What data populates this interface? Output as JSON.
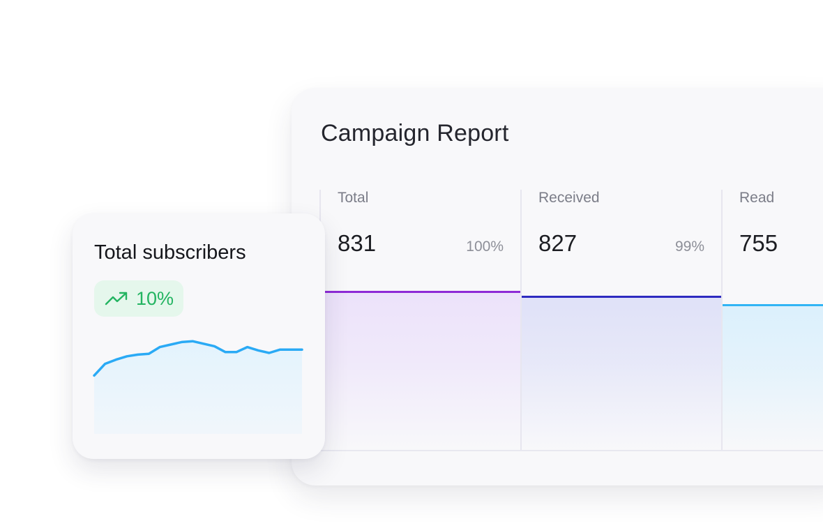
{
  "report": {
    "title": "Campaign Report",
    "columns": [
      {
        "label": "Total",
        "value": "831",
        "pct": "100%",
        "level": 0.94,
        "color": "#8e2bd6",
        "fill": "#ece2fa"
      },
      {
        "label": "Received",
        "value": "827",
        "pct": "99%",
        "level": 0.91,
        "color": "#2e2bc0",
        "fill": "#dfe1f8"
      },
      {
        "label": "Read",
        "value": "755",
        "pct": "",
        "level": 0.86,
        "color": "#31b4f4",
        "fill": "#dbf0fc"
      }
    ]
  },
  "subscribers": {
    "title": "Total subscribers",
    "change": "10%",
    "change_color": "#23b461",
    "trend_icon": "trending-up-icon"
  },
  "chart_data": {
    "type": "area",
    "x": [
      0,
      1,
      2,
      3,
      4,
      5,
      6,
      7,
      8,
      9,
      10,
      11,
      12,
      13,
      14,
      15,
      16,
      17,
      18,
      19
    ],
    "values": [
      0.06,
      0.34,
      0.44,
      0.52,
      0.56,
      0.58,
      0.74,
      0.8,
      0.86,
      0.88,
      0.82,
      0.76,
      0.62,
      0.62,
      0.74,
      0.66,
      0.6,
      0.68,
      0.68,
      0.68
    ],
    "color": "#2aaaf5",
    "fill": "#e3f3fd",
    "ylim": [
      0,
      1
    ],
    "grid": false,
    "title": "",
    "xlabel": "",
    "ylabel": ""
  }
}
